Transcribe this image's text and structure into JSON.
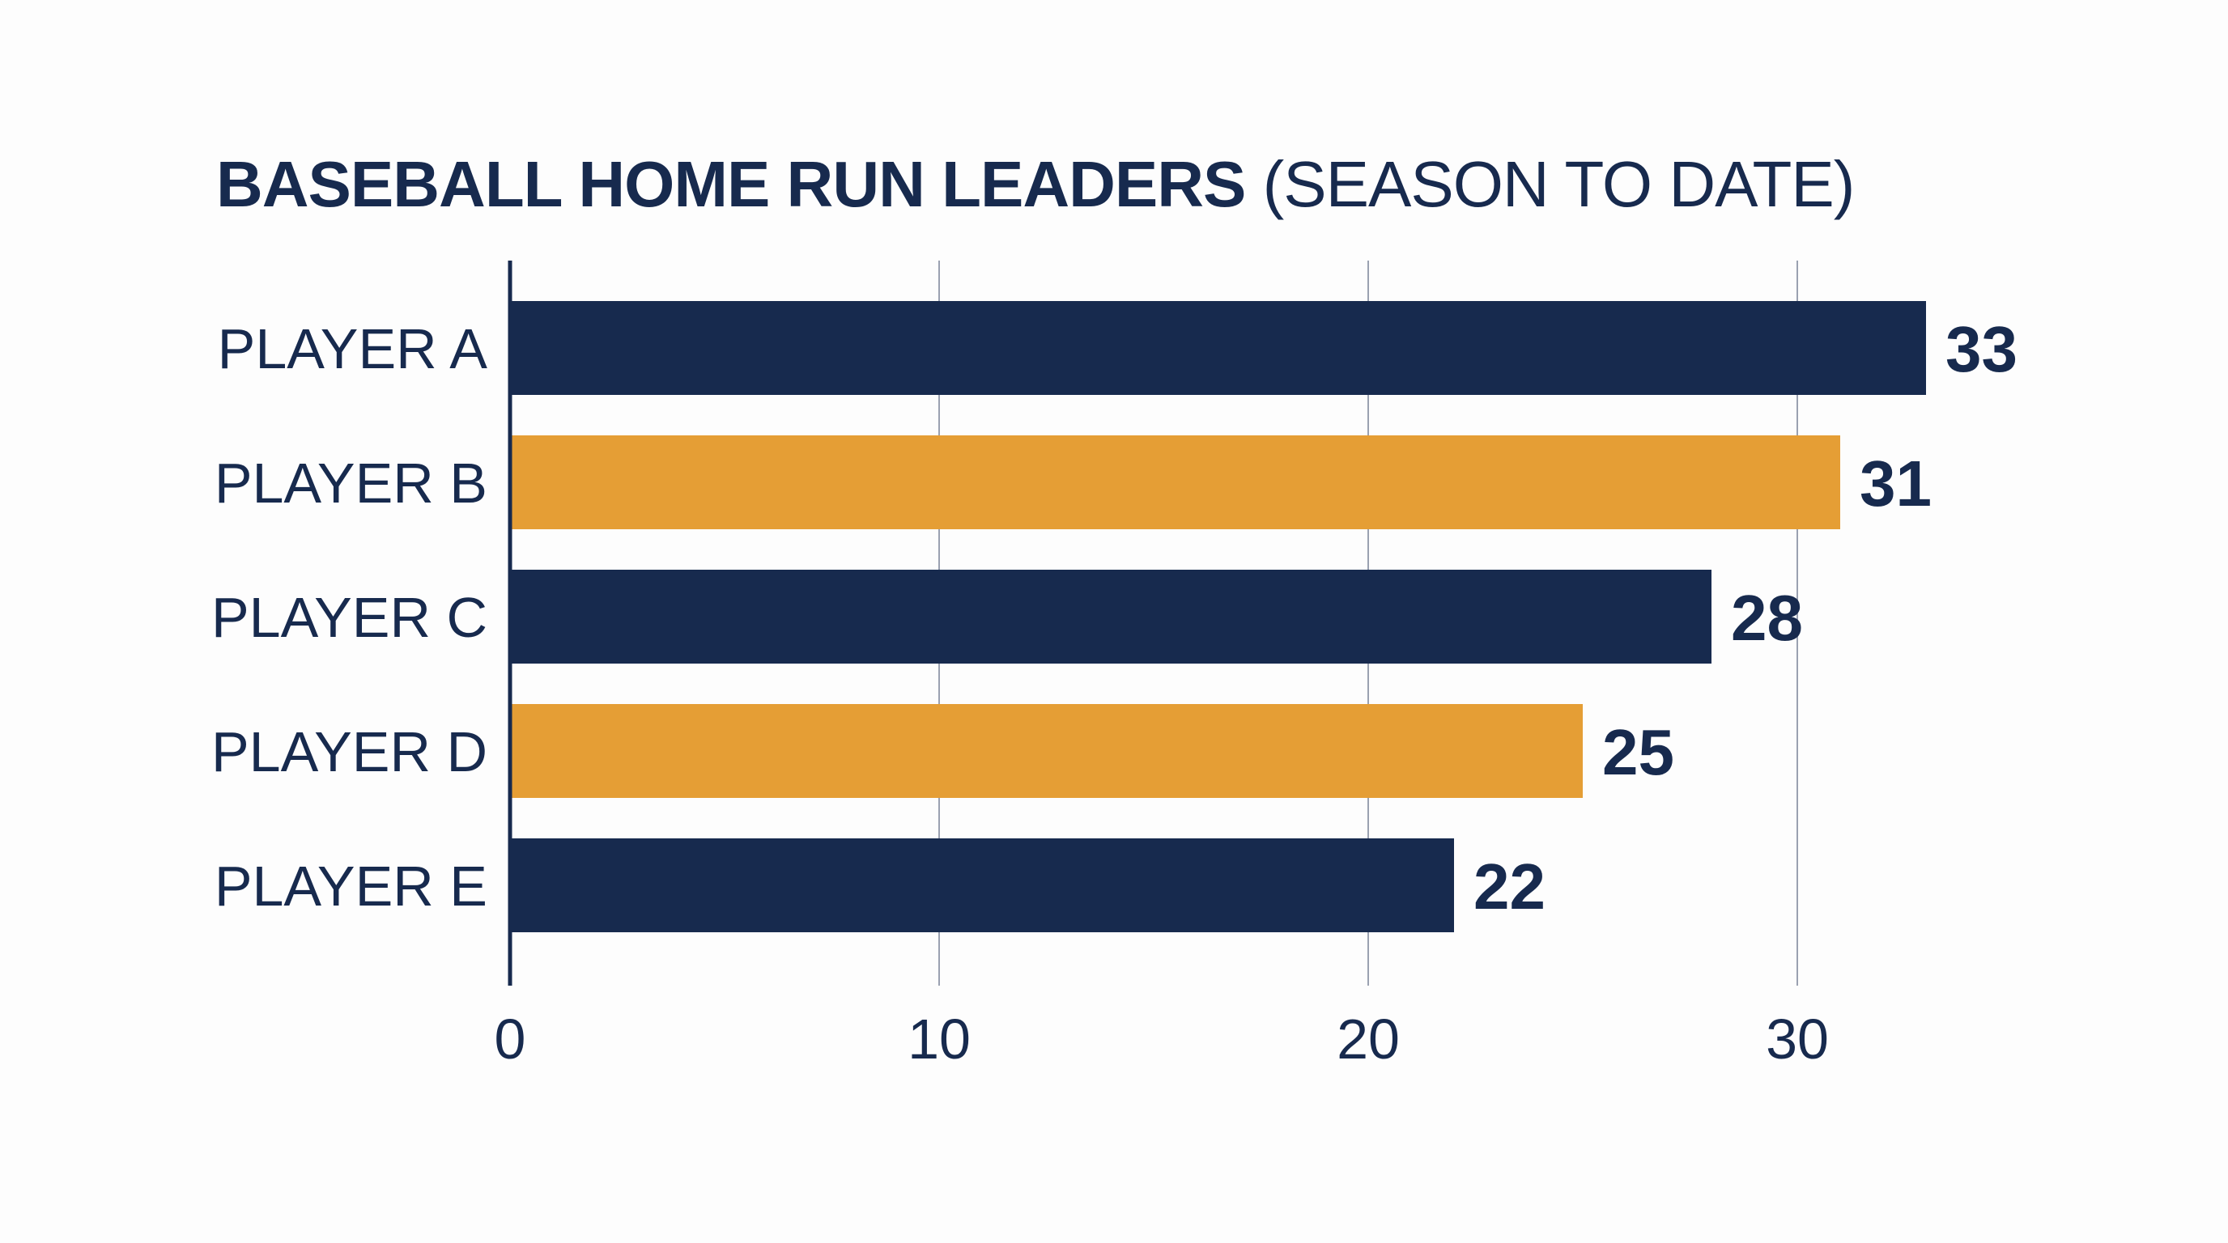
{
  "chart_data": {
    "type": "bar",
    "orientation": "horizontal",
    "title": "BASEBALL HOME RUN LEADERS",
    "subtitle": "(SEASON TO DATE)",
    "categories": [
      "PLAYER A",
      "PLAYER B",
      "PLAYER C",
      "PLAYER D",
      "PLAYER E"
    ],
    "values": [
      33,
      31,
      28,
      25,
      22
    ],
    "value_labels": [
      "33",
      "31",
      "28",
      "25",
      "22"
    ],
    "bar_colors": [
      "#172a4e",
      "#e59e35",
      "#172a4e",
      "#e59e35",
      "#172a4e"
    ],
    "xticks": [
      0,
      10,
      20,
      30
    ],
    "xtick_labels": [
      "0",
      "10",
      "20",
      "30"
    ],
    "xlim": [
      0,
      33
    ],
    "xlabel": "",
    "ylabel": "",
    "grid": "vertical",
    "legend": "none"
  },
  "colors": {
    "navy": "#172a4e",
    "gold": "#e59e35",
    "grid": "#9aa1b1",
    "background": "#fdfdfd"
  }
}
